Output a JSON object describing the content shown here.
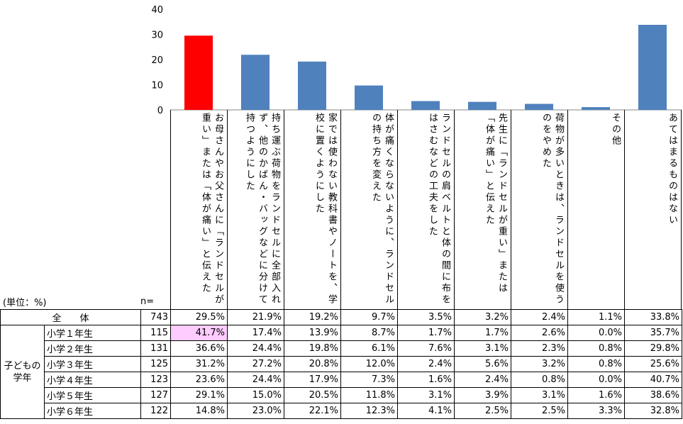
{
  "colors": {
    "highlight_bar": "#ff0000",
    "bar": "#4f81bd",
    "highlight_cell": "#ffccff"
  },
  "chart_data": {
    "type": "bar",
    "ylim": [
      0,
      40
    ],
    "yticks": [
      0,
      10,
      20,
      30,
      40
    ],
    "grid": false,
    "categories": [
      "お母さんやお父さんに「ランドセルが重い」または「体が痛い」と伝えた",
      "持ち運ぶ荷物をランドセルに全部入れず、他のかばん・バッグなどに分けて持つようにした",
      "家では使わない教科書やノートを、学校に置くようにした",
      "体が痛くならないように、ランドセルの持ち方を変えた",
      "ランドセルの肩ベルトと体の間に布をはさむなどの工夫をした",
      "先生に「ランドセルが重い」または「体が痛い」と伝えた",
      "荷物が多いときは、ランドセルを使うのをやめた",
      "その他",
      "あてはまるものはない"
    ],
    "values": [
      29.5,
      21.9,
      19.2,
      9.7,
      3.5,
      3.2,
      2.4,
      1.1,
      33.8
    ]
  },
  "table": {
    "unit_label": "(単位：%)",
    "n_label": "n=",
    "total": {
      "label": "全　　体",
      "n": "743",
      "values": [
        "29.5%",
        "21.9%",
        "19.2%",
        "9.7%",
        "3.5%",
        "3.2%",
        "2.4%",
        "1.1%",
        "33.8%"
      ]
    },
    "group_label_line1": "子どもの",
    "group_label_line2": "学年",
    "rows": [
      {
        "label": "小学１年生",
        "n": "115",
        "values": [
          "41.7%",
          "17.4%",
          "13.9%",
          "8.7%",
          "1.7%",
          "1.7%",
          "2.6%",
          "0.0%",
          "35.7%"
        ]
      },
      {
        "label": "小学２年生",
        "n": "131",
        "values": [
          "36.6%",
          "24.4%",
          "19.8%",
          "6.1%",
          "7.6%",
          "3.1%",
          "2.3%",
          "0.8%",
          "29.8%"
        ]
      },
      {
        "label": "小学３年生",
        "n": "125",
        "values": [
          "31.2%",
          "27.2%",
          "20.8%",
          "12.0%",
          "2.4%",
          "5.6%",
          "3.2%",
          "0.8%",
          "25.6%"
        ]
      },
      {
        "label": "小学４年生",
        "n": "123",
        "values": [
          "23.6%",
          "24.4%",
          "17.9%",
          "7.3%",
          "1.6%",
          "2.4%",
          "0.8%",
          "0.0%",
          "40.7%"
        ]
      },
      {
        "label": "小学５年生",
        "n": "127",
        "values": [
          "29.1%",
          "15.0%",
          "20.5%",
          "11.8%",
          "3.1%",
          "3.9%",
          "3.1%",
          "1.6%",
          "38.6%"
        ]
      },
      {
        "label": "小学６年生",
        "n": "122",
        "values": [
          "14.8%",
          "23.0%",
          "22.1%",
          "12.3%",
          "4.1%",
          "2.5%",
          "2.5%",
          "3.3%",
          "32.8%"
        ]
      }
    ]
  }
}
